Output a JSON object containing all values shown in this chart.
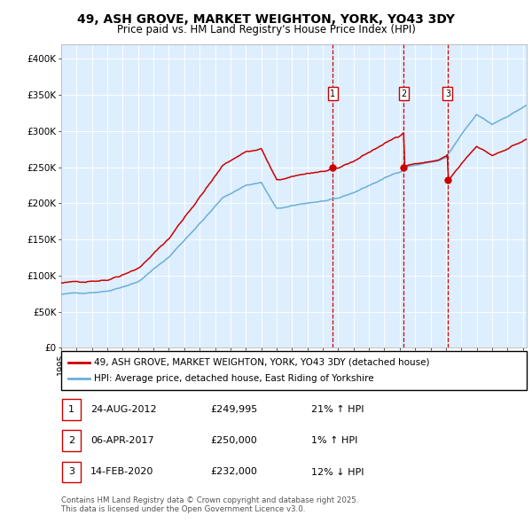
{
  "title": "49, ASH GROVE, MARKET WEIGHTON, YORK, YO43 3DY",
  "subtitle": "Price paid vs. HM Land Registry's House Price Index (HPI)",
  "legend_line1": "49, ASH GROVE, MARKET WEIGHTON, YORK, YO43 3DY (detached house)",
  "legend_line2": "HPI: Average price, detached house, East Riding of Yorkshire",
  "table": [
    {
      "num": "1",
      "date": "24-AUG-2012",
      "price": "£249,995",
      "pct": "21%",
      "dir": "↑",
      "label": "HPI"
    },
    {
      "num": "2",
      "date": "06-APR-2017",
      "price": "£250,000",
      "pct": "1%",
      "dir": "↑",
      "label": "HPI"
    },
    {
      "num": "3",
      "date": "14-FEB-2020",
      "price": "£232,000",
      "pct": "12%",
      "dir": "↓",
      "label": "HPI"
    }
  ],
  "footnote1": "Contains HM Land Registry data © Crown copyright and database right 2025.",
  "footnote2": "This data is licensed under the Open Government Licence v3.0.",
  "sale_dates_dec": [
    2012.648,
    2017.261,
    2020.118
  ],
  "sale_prices": [
    249995,
    250000,
    232000
  ],
  "hpi_color": "#6baed6",
  "red_color": "#cc0000",
  "bg_color": "#ddeeff",
  "grid_color": "#ffffff",
  "ylim": [
    0,
    420000
  ],
  "yticks": [
    0,
    50000,
    100000,
    150000,
    200000,
    250000,
    300000,
    350000,
    400000
  ],
  "ytick_labels": [
    "£0",
    "£50K",
    "£100K",
    "£150K",
    "£200K",
    "£250K",
    "£300K",
    "£350K",
    "£400K"
  ]
}
